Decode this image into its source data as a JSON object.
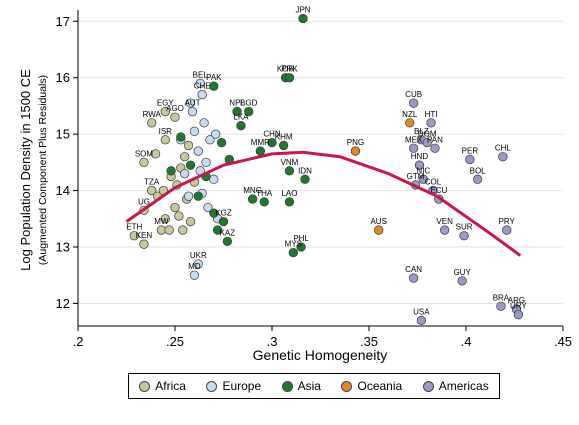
{
  "chart_data": {
    "type": "scatter",
    "xlabel": "Genetic Homogeneity",
    "ylabel": "Log Population Density in 1500 CE",
    "ylabel2": "(Augmented Component Plus Residuals)",
    "xlim": [
      0.2,
      0.45
    ],
    "ylim": [
      11.6,
      17.2
    ],
    "xticks": [
      ".2",
      ".25",
      ".3",
      ".35",
      ".4",
      ".45"
    ],
    "xtick_values": [
      0.2,
      0.25,
      0.3,
      0.35,
      0.4,
      0.45
    ],
    "yticks": [
      "12",
      "13",
      "14",
      "15",
      "16",
      "17"
    ],
    "ytick_values": [
      12,
      13,
      14,
      15,
      16,
      17
    ],
    "grid": "y",
    "legend_placement": "bottom",
    "colors": {
      "Africa": "#c8c89a",
      "Europe": "#c6dbf0",
      "Asia": "#1c7a2c",
      "Oceania": "#e6852b",
      "Americas": "#9a9ac8",
      "fit": "#c8174a"
    },
    "series": [
      {
        "name": "Africa",
        "points": [
          {
            "label": "ETH",
            "x": 0.229,
            "y": 13.2
          },
          {
            "label": "KEN",
            "x": 0.234,
            "y": 13.05
          },
          {
            "label": "UG",
            "x": 0.234,
            "y": 13.65
          },
          {
            "label": "TZA",
            "x": 0.238,
            "y": 14.0
          },
          {
            "label": "SOM",
            "x": 0.234,
            "y": 14.5
          },
          {
            "label": "RWA",
            "x": 0.238,
            "y": 15.2
          },
          {
            "label": "EGY",
            "x": 0.245,
            "y": 15.4
          },
          {
            "label": "AGO",
            "x": 0.25,
            "y": 15.3
          },
          {
            "label": "ISR",
            "x": 0.245,
            "y": 14.9
          },
          {
            "label": "MW",
            "x": 0.243,
            "y": 13.3
          },
          {
            "label": "",
            "x": 0.24,
            "y": 14.65
          },
          {
            "label": "",
            "x": 0.241,
            "y": 13.9
          },
          {
            "label": "",
            "x": 0.244,
            "y": 14.0
          },
          {
            "label": "",
            "x": 0.245,
            "y": 13.5
          },
          {
            "label": "",
            "x": 0.247,
            "y": 13.3
          },
          {
            "label": "",
            "x": 0.248,
            "y": 14.25
          },
          {
            "label": "",
            "x": 0.25,
            "y": 13.7
          },
          {
            "label": "",
            "x": 0.251,
            "y": 14.1
          },
          {
            "label": "",
            "x": 0.252,
            "y": 13.55
          },
          {
            "label": "",
            "x": 0.253,
            "y": 14.4
          },
          {
            "label": "",
            "x": 0.254,
            "y": 13.3
          },
          {
            "label": "",
            "x": 0.255,
            "y": 14.6
          },
          {
            "label": "",
            "x": 0.256,
            "y": 13.85
          },
          {
            "label": "",
            "x": 0.257,
            "y": 14.8
          },
          {
            "label": "",
            "x": 0.258,
            "y": 13.45
          },
          {
            "label": "",
            "x": 0.26,
            "y": 14.15
          }
        ]
      },
      {
        "name": "Europe",
        "points": [
          {
            "label": "UKR",
            "x": 0.262,
            "y": 12.7
          },
          {
            "label": "MD",
            "x": 0.26,
            "y": 12.5
          },
          {
            "label": "BEL",
            "x": 0.263,
            "y": 15.9
          },
          {
            "label": "CHE",
            "x": 0.264,
            "y": 15.7
          },
          {
            "label": "AUT",
            "x": 0.259,
            "y": 15.4
          },
          {
            "label": "",
            "x": 0.258,
            "y": 15.55
          },
          {
            "label": "",
            "x": 0.26,
            "y": 15.05
          },
          {
            "label": "",
            "x": 0.262,
            "y": 14.7
          },
          {
            "label": "",
            "x": 0.263,
            "y": 14.35
          },
          {
            "label": "",
            "x": 0.264,
            "y": 13.95
          },
          {
            "label": "",
            "x": 0.265,
            "y": 15.2
          },
          {
            "label": "",
            "x": 0.266,
            "y": 14.5
          },
          {
            "label": "",
            "x": 0.267,
            "y": 13.7
          },
          {
            "label": "",
            "x": 0.268,
            "y": 14.9
          },
          {
            "label": "",
            "x": 0.27,
            "y": 14.2
          },
          {
            "label": "",
            "x": 0.271,
            "y": 15.0
          },
          {
            "label": "",
            "x": 0.272,
            "y": 13.5
          },
          {
            "label": "",
            "x": 0.257,
            "y": 13.9
          },
          {
            "label": "",
            "x": 0.255,
            "y": 14.3
          },
          {
            "label": "",
            "x": 0.253,
            "y": 14.9
          }
        ]
      },
      {
        "name": "Asia",
        "points": [
          {
            "label": "JPN",
            "x": 0.316,
            "y": 17.05
          },
          {
            "label": "KOR",
            "x": 0.307,
            "y": 16.0
          },
          {
            "label": "PRK",
            "x": 0.309,
            "y": 16.0
          },
          {
            "label": "PAK",
            "x": 0.27,
            "y": 15.85
          },
          {
            "label": "NPL",
            "x": 0.282,
            "y": 15.4
          },
          {
            "label": "BGD",
            "x": 0.288,
            "y": 15.4
          },
          {
            "label": "LKA",
            "x": 0.284,
            "y": 15.15
          },
          {
            "label": "CHN",
            "x": 0.3,
            "y": 14.85
          },
          {
            "label": "KHM",
            "x": 0.306,
            "y": 14.8
          },
          {
            "label": "MMR",
            "x": 0.294,
            "y": 14.7
          },
          {
            "label": "VNM",
            "x": 0.309,
            "y": 14.35
          },
          {
            "label": "IDN",
            "x": 0.317,
            "y": 14.2
          },
          {
            "label": "MNG",
            "x": 0.29,
            "y": 13.85
          },
          {
            "label": "THA",
            "x": 0.296,
            "y": 13.8
          },
          {
            "label": "LAO",
            "x": 0.309,
            "y": 13.8
          },
          {
            "label": "PHL",
            "x": 0.315,
            "y": 13.0
          },
          {
            "label": "MYS",
            "x": 0.311,
            "y": 12.9
          },
          {
            "label": "KGZ",
            "x": 0.275,
            "y": 13.45
          },
          {
            "label": "KAZ",
            "x": 0.277,
            "y": 13.1
          },
          {
            "label": "",
            "x": 0.253,
            "y": 14.95
          },
          {
            "label": "",
            "x": 0.258,
            "y": 14.45
          },
          {
            "label": "",
            "x": 0.262,
            "y": 13.9
          },
          {
            "label": "",
            "x": 0.266,
            "y": 14.25
          },
          {
            "label": "",
            "x": 0.27,
            "y": 13.6
          },
          {
            "label": "",
            "x": 0.274,
            "y": 14.85
          },
          {
            "label": "",
            "x": 0.272,
            "y": 13.3
          },
          {
            "label": "",
            "x": 0.278,
            "y": 14.55
          },
          {
            "label": "",
            "x": 0.248,
            "y": 14.35
          }
        ]
      },
      {
        "name": "Oceania",
        "points": [
          {
            "label": "PNG",
            "x": 0.343,
            "y": 14.7
          },
          {
            "label": "NZL",
            "x": 0.371,
            "y": 15.2
          },
          {
            "label": "AUS",
            "x": 0.355,
            "y": 13.3
          }
        ]
      },
      {
        "name": "Americas",
        "points": [
          {
            "label": "CUB",
            "x": 0.373,
            "y": 15.55
          },
          {
            "label": "HTI",
            "x": 0.382,
            "y": 15.2
          },
          {
            "label": "BLZ",
            "x": 0.377,
            "y": 14.9
          },
          {
            "label": "DOM",
            "x": 0.38,
            "y": 14.85
          },
          {
            "label": "MEX",
            "x": 0.373,
            "y": 14.75
          },
          {
            "label": "PAN",
            "x": 0.384,
            "y": 14.75
          },
          {
            "label": "HND",
            "x": 0.376,
            "y": 14.45
          },
          {
            "label": "NIC",
            "x": 0.378,
            "y": 14.2
          },
          {
            "label": "GTM",
            "x": 0.374,
            "y": 14.1
          },
          {
            "label": "COL",
            "x": 0.383,
            "y": 14.0
          },
          {
            "label": "ECU",
            "x": 0.386,
            "y": 13.85
          },
          {
            "label": "PER",
            "x": 0.402,
            "y": 14.55
          },
          {
            "label": "BOL",
            "x": 0.406,
            "y": 14.2
          },
          {
            "label": "CHL",
            "x": 0.419,
            "y": 14.6
          },
          {
            "label": "VEN",
            "x": 0.389,
            "y": 13.3
          },
          {
            "label": "SUR",
            "x": 0.399,
            "y": 13.2
          },
          {
            "label": "PRY",
            "x": 0.421,
            "y": 13.3
          },
          {
            "label": "CAN",
            "x": 0.373,
            "y": 12.45
          },
          {
            "label": "GUY",
            "x": 0.398,
            "y": 12.4
          },
          {
            "label": "USA",
            "x": 0.377,
            "y": 11.7
          },
          {
            "label": "BRA",
            "x": 0.418,
            "y": 11.95
          },
          {
            "label": "ARG",
            "x": 0.426,
            "y": 11.9
          },
          {
            "label": "URY",
            "x": 0.427,
            "y": 11.8
          }
        ]
      }
    ],
    "fit_line": {
      "type": "quadratic",
      "x": [
        0.225,
        0.25,
        0.275,
        0.3,
        0.316,
        0.335,
        0.36,
        0.385,
        0.41,
        0.428
      ],
      "y": [
        13.45,
        14.05,
        14.45,
        14.65,
        14.68,
        14.6,
        14.3,
        13.9,
        13.3,
        12.85
      ]
    }
  }
}
